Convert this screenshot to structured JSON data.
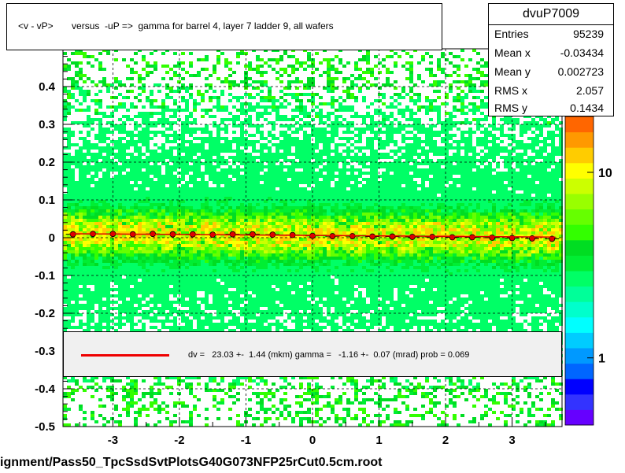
{
  "title": "<v - vP>       versus  -uP =>  gamma for barrel 4, layer 7 ladder 9, all wafers",
  "stats": {
    "name": "dvuP7009",
    "rows": [
      {
        "label": "Entries",
        "value": "95239"
      },
      {
        "label": "Mean x",
        "value": "-0.03434"
      },
      {
        "label": "Mean y",
        "value": "0.002723"
      },
      {
        "label": "RMS x",
        "value": "2.057"
      },
      {
        "label": "RMS y",
        "value": "0.1434"
      }
    ]
  },
  "legend": {
    "text": "dv =   23.03 +-  1.44 (mkm) gamma =   -1.16 +-  0.07 (mrad) prob = 0.069",
    "line_color": "#e00000"
  },
  "footer": "ignment/Pass50_TpcSsdSvtPlotsG40G073NFP25rCut0.5cm.root",
  "chart_data": {
    "type": "heatmap",
    "xlim": [
      -3.75,
      3.75
    ],
    "ylim": [
      -0.5,
      0.5
    ],
    "x_ticks": [
      "-3",
      "-2",
      "-1",
      "0",
      "1",
      "2",
      "3"
    ],
    "x_tick_values": [
      -3,
      -2,
      -1,
      0,
      1,
      2,
      3
    ],
    "y_ticks": [
      "-0.5",
      "-0.4",
      "-0.3",
      "-0.2",
      "-0.1",
      "0",
      "0.1",
      "0.2",
      "0.3",
      "0.4"
    ],
    "y_tick_values": [
      -0.5,
      -0.4,
      -0.3,
      -0.2,
      -0.1,
      0,
      0.1,
      0.2,
      0.3,
      0.4
    ],
    "grid": true,
    "colorbar_ticks": [
      "1",
      "10"
    ],
    "colorbar_tick_values": [
      1,
      10
    ],
    "colorbar_max": 20,
    "profile": {
      "x": [
        -3.6,
        -3.3,
        -3.0,
        -2.7,
        -2.4,
        -2.1,
        -1.8,
        -1.5,
        -1.2,
        -0.9,
        -0.6,
        -0.3,
        0.0,
        0.3,
        0.6,
        0.9,
        1.2,
        1.5,
        1.8,
        2.1,
        2.4,
        2.7,
        3.0,
        3.3,
        3.6
      ],
      "y": [
        0.009,
        0.01,
        0.01,
        0.009,
        0.01,
        0.009,
        0.009,
        0.008,
        0.009,
        0.009,
        0.008,
        0.007,
        0.005,
        0.004,
        0.004,
        0.003,
        0.003,
        0.002,
        0.002,
        0.001,
        0.001,
        0.0,
        -0.001,
        -0.002,
        -0.003
      ]
    },
    "fit_line": {
      "slope": -0.0012,
      "intercept": 0.006
    }
  }
}
